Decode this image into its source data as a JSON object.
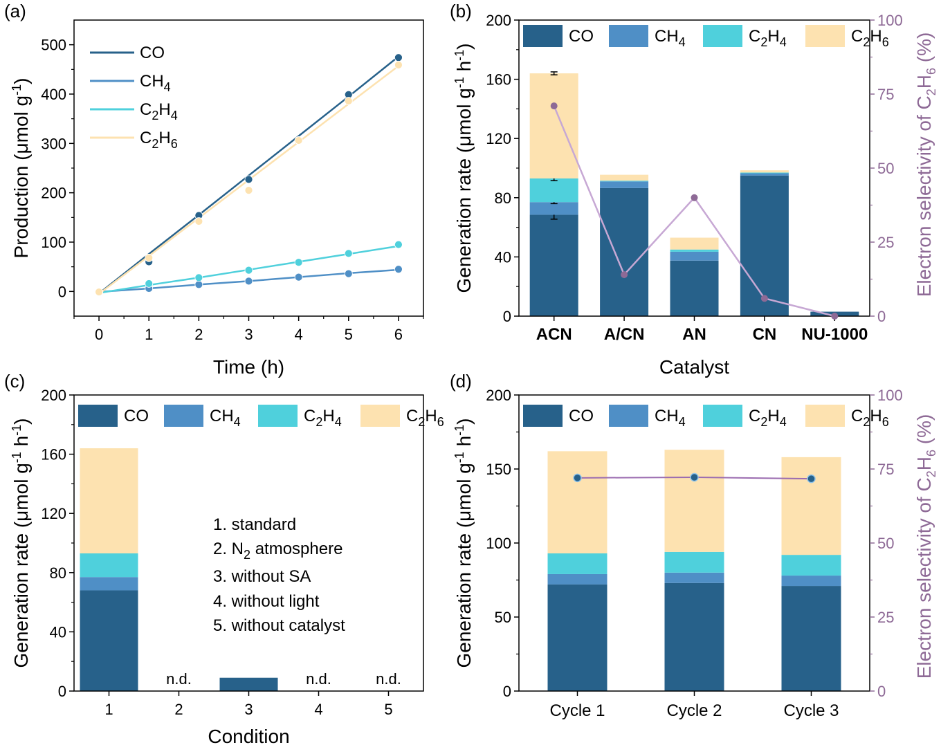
{
  "colors": {
    "CO": "#27618a",
    "CH4": "#4f8fc6",
    "C2H4": "#4fd0dc",
    "C2H6": "#fde2b0",
    "selectivity": "#8e6a96",
    "selectivity_line": "#c7a8d4",
    "selectivity_line_d": "#9b6cb0"
  },
  "panels": {
    "a": "(a)",
    "b": "(b)",
    "c": "(c)",
    "d": "(d)"
  },
  "legend": {
    "CO": "CO",
    "CH4": [
      "CH",
      "4"
    ],
    "C2H4": [
      "C",
      "2",
      "H",
      "4"
    ],
    "C2H6": [
      "C",
      "2",
      "H",
      "6"
    ]
  },
  "conditions_list": [
    "1. standard",
    "2. N",
    "2",
    " atmosphere",
    "3. without SA",
    "4. without light",
    "5. without catalyst"
  ],
  "chart_data": [
    {
      "panel": "a",
      "type": "line",
      "xlabel": "Time (h)",
      "ylabel": "Production (μmol g-1)",
      "ylabel_parts": [
        "Production (μmol g",
        "-1",
        ")"
      ],
      "xlim": [
        -0.5,
        6.5
      ],
      "ylim": [
        -50,
        550
      ],
      "xticks": [
        0,
        1,
        2,
        3,
        4,
        5,
        6
      ],
      "yticks": [
        0,
        100,
        200,
        300,
        400,
        500
      ],
      "legend_position": "top-left",
      "x": [
        0,
        1,
        2,
        3,
        4,
        5,
        6
      ],
      "series": [
        {
          "name": "CO",
          "key": "CO",
          "points": [
            -2,
            60,
            154,
            227,
            306,
            399,
            474
          ],
          "fit": [
            -4,
            76,
            155,
            235,
            315,
            395,
            476
          ]
        },
        {
          "name": "CH4",
          "key": "CH4",
          "points": [
            -1,
            6,
            14,
            21,
            29,
            36,
            45
          ],
          "fit": [
            -1,
            6,
            14,
            21,
            29,
            37,
            44
          ]
        },
        {
          "name": "C2H4",
          "key": "C2H4",
          "points": [
            -2,
            16,
            28,
            43,
            59,
            77,
            95
          ],
          "fit": [
            -3,
            13,
            28,
            44,
            60,
            76,
            92
          ]
        },
        {
          "name": "C2H6",
          "key": "C2H6",
          "points": [
            -1,
            68,
            142,
            205,
            306,
            386,
            459
          ],
          "fit": [
            -5,
            72,
            149,
            226,
            303,
            380,
            457
          ]
        }
      ]
    },
    {
      "panel": "b",
      "type": "bar",
      "stacked": true,
      "xlabel": "Catalyst",
      "ylabel": "Generation rate (μmol g-1 h-1)",
      "ylabel_parts": [
        "Generation rate (μmol g",
        "-1",
        " h",
        "-1",
        ")"
      ],
      "y2label": "Electron selectivity of C2H6 (%)",
      "y2label_parts": [
        "Electron selectivity of C",
        "2",
        "H",
        "6",
        " (%)"
      ],
      "categories": [
        "ACN",
        "A/CN",
        "AN",
        "CN",
        "NU-1000"
      ],
      "ylim": [
        0,
        200
      ],
      "yticks": [
        0,
        40,
        80,
        120,
        160,
        200
      ],
      "y2lim": [
        0,
        100
      ],
      "y2ticks": [
        0,
        25,
        50,
        75,
        100
      ],
      "legend_position": "top",
      "series": [
        {
          "name": "CO",
          "key": "CO",
          "values": [
            68.5,
            86.5,
            37.5,
            95,
            3
          ],
          "errors": [
            3,
            0,
            0,
            0,
            0
          ]
        },
        {
          "name": "CH4",
          "key": "CH4",
          "values": [
            8.5,
            4.5,
            6,
            1.5,
            0
          ],
          "errors": [
            1,
            0,
            0,
            0,
            0
          ]
        },
        {
          "name": "C2H4",
          "key": "C2H4",
          "values": [
            16,
            0.5,
            1.5,
            0.5,
            0
          ],
          "errors": [
            1.5,
            0,
            0,
            0,
            0
          ]
        },
        {
          "name": "C2H6",
          "key": "C2H6",
          "values": [
            71,
            4,
            8,
            1.5,
            0
          ],
          "errors": [
            1,
            0,
            0,
            0,
            0
          ]
        }
      ],
      "selectivity": [
        71,
        14,
        40,
        6,
        0
      ]
    },
    {
      "panel": "c",
      "type": "bar",
      "stacked": true,
      "xlabel": "Condition",
      "ylabel": "Generation rate (μmol g-1 h-1)",
      "ylabel_parts": [
        "Generation rate (μmol g",
        "-1",
        " h",
        "-1",
        ")"
      ],
      "categories": [
        "1",
        "2",
        "3",
        "4",
        "5"
      ],
      "ylim": [
        0,
        200
      ],
      "yticks": [
        0,
        40,
        80,
        120,
        160,
        200
      ],
      "legend_position": "top",
      "series": [
        {
          "name": "CO",
          "key": "CO",
          "values": [
            68,
            0,
            9,
            0,
            0
          ]
        },
        {
          "name": "CH4",
          "key": "CH4",
          "values": [
            9,
            0,
            0,
            0,
            0
          ]
        },
        {
          "name": "C2H4",
          "key": "C2H4",
          "values": [
            16,
            0,
            0,
            0,
            0
          ]
        },
        {
          "name": "C2H6",
          "key": "C2H6",
          "values": [
            71,
            0,
            0,
            0,
            0
          ]
        }
      ],
      "annotations": [
        "",
        "n.d.",
        "",
        "n.d.",
        "n.d."
      ]
    },
    {
      "panel": "d",
      "type": "bar",
      "stacked": true,
      "ylabel": "Generation rate (μmol g-1 h-1)",
      "ylabel_parts": [
        "Generation rate (μmol g",
        "-1",
        " h",
        "-1",
        ")"
      ],
      "y2label": "Electron selectivity of C2H6 (%)",
      "y2label_parts": [
        "Electron selectivity of C",
        "2",
        "H",
        "6",
        " (%)"
      ],
      "categories": [
        "Cycle 1",
        "Cycle 2",
        "Cycle 3"
      ],
      "ylim": [
        0,
        200
      ],
      "yticks": [
        0,
        50,
        100,
        150,
        200
      ],
      "y2lim": [
        0,
        100
      ],
      "y2ticks": [
        0,
        25,
        50,
        75,
        100
      ],
      "legend_position": "top",
      "series": [
        {
          "name": "CO",
          "key": "CO",
          "values": [
            72,
            73,
            71
          ]
        },
        {
          "name": "CH4",
          "key": "CH4",
          "values": [
            7,
            7,
            7
          ]
        },
        {
          "name": "C2H4",
          "key": "C2H4",
          "values": [
            14,
            14,
            14
          ]
        },
        {
          "name": "C2H6",
          "key": "C2H6",
          "values": [
            69,
            69,
            66
          ]
        }
      ],
      "selectivity": [
        72,
        72.2,
        71.7
      ]
    }
  ]
}
